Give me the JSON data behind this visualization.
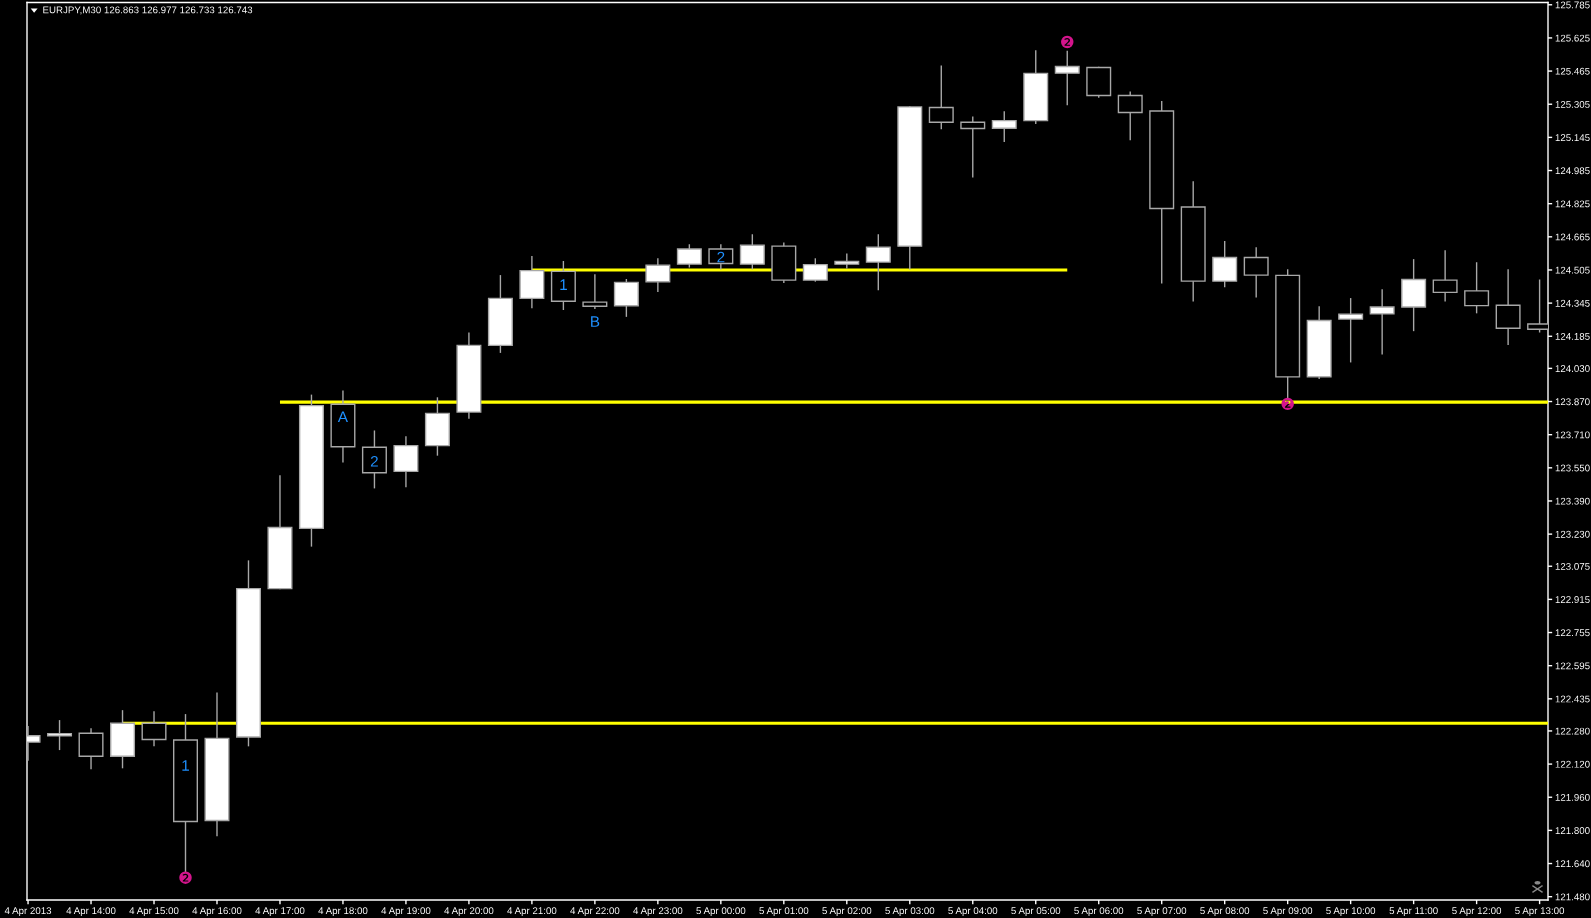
{
  "chart_data": {
    "type": "candlestick",
    "title": "EURJPY,M30 126.863 126.977 126.733 126.743",
    "x": [
      "2013-04-04T13:00",
      "2013-04-04T13:30",
      "2013-04-04T14:00",
      "2013-04-04T14:30",
      "2013-04-04T15:00",
      "2013-04-04T15:30",
      "2013-04-04T16:00",
      "2013-04-04T16:30",
      "2013-04-04T17:00",
      "2013-04-04T17:30",
      "2013-04-04T18:00",
      "2013-04-04T18:30",
      "2013-04-04T19:00",
      "2013-04-04T19:30",
      "2013-04-04T20:00",
      "2013-04-04T20:30",
      "2013-04-04T21:00",
      "2013-04-04T21:30",
      "2013-04-04T22:00",
      "2013-04-04T22:30",
      "2013-04-04T23:00",
      "2013-04-04T23:30",
      "2013-04-05T00:00",
      "2013-04-05T00:30",
      "2013-04-05T01:00",
      "2013-04-05T01:30",
      "2013-04-05T02:00",
      "2013-04-05T02:30",
      "2013-04-05T03:00",
      "2013-04-05T03:30",
      "2013-04-05T04:00",
      "2013-04-05T04:30",
      "2013-04-05T05:00",
      "2013-04-05T05:30",
      "2013-04-05T06:00",
      "2013-04-05T06:30",
      "2013-04-05T07:00",
      "2013-04-05T07:30",
      "2013-04-05T08:00",
      "2013-04-05T08:30",
      "2013-04-05T09:00",
      "2013-04-05T09:30",
      "2013-04-05T10:00",
      "2013-04-05T10:30",
      "2013-04-05T11:00",
      "2013-04-05T11:30",
      "2013-04-05T12:00",
      "2013-04-05T12:30",
      "2013-04-05T13:00"
    ],
    "ohlc": [
      [
        122.226,
        122.3,
        122.14,
        122.257
      ],
      [
        122.256,
        122.329,
        122.191,
        122.267
      ],
      [
        122.269,
        122.29,
        122.099,
        122.158
      ],
      [
        122.158,
        122.377,
        122.103,
        122.317
      ],
      [
        122.317,
        122.372,
        122.209,
        122.239
      ],
      [
        122.236,
        122.358,
        121.6,
        121.843
      ],
      [
        121.848,
        122.462,
        121.775,
        122.244
      ],
      [
        122.251,
        123.1,
        122.209,
        122.967
      ],
      [
        122.967,
        123.511,
        122.967,
        123.262
      ],
      [
        123.258,
        123.9,
        123.173,
        123.85
      ],
      [
        123.857,
        123.92,
        123.579,
        123.652
      ],
      [
        123.649,
        123.727,
        123.454,
        123.526
      ],
      [
        123.533,
        123.699,
        123.46,
        123.657
      ],
      [
        123.657,
        123.887,
        123.612,
        123.813
      ],
      [
        123.819,
        124.2,
        123.79,
        124.141
      ],
      [
        124.141,
        124.477,
        124.108,
        124.368
      ],
      [
        124.368,
        124.569,
        124.323,
        124.502
      ],
      [
        124.498,
        124.545,
        124.315,
        124.354
      ],
      [
        124.35,
        124.481,
        124.32,
        124.33
      ],
      [
        124.332,
        124.458,
        124.282,
        124.445
      ],
      [
        124.448,
        124.558,
        124.402,
        124.528
      ],
      [
        124.533,
        124.626,
        124.52,
        124.606
      ],
      [
        124.606,
        124.626,
        124.511,
        124.536
      ],
      [
        124.533,
        124.674,
        124.511,
        124.624
      ],
      [
        124.62,
        124.634,
        124.445,
        124.456
      ],
      [
        124.456,
        124.558,
        124.452,
        124.531
      ],
      [
        124.533,
        124.581,
        124.516,
        124.546
      ],
      [
        124.543,
        124.674,
        124.411,
        124.615
      ],
      [
        124.62,
        125.292,
        124.511,
        125.292
      ],
      [
        125.289,
        125.489,
        125.188,
        125.218
      ],
      [
        125.218,
        125.243,
        124.955,
        125.188
      ],
      [
        125.189,
        125.268,
        125.126,
        125.226
      ],
      [
        125.226,
        125.562,
        125.213,
        125.454
      ],
      [
        125.455,
        125.56,
        125.304,
        125.487
      ],
      [
        125.482,
        125.482,
        125.34,
        125.347
      ],
      [
        125.347,
        125.363,
        125.134,
        125.265
      ],
      [
        125.272,
        125.317,
        124.443,
        124.802
      ],
      [
        124.809,
        124.93,
        124.356,
        124.451
      ],
      [
        124.451,
        124.641,
        124.425,
        124.565
      ],
      [
        124.565,
        124.611,
        124.376,
        124.48
      ],
      [
        124.479,
        124.505,
        123.887,
        123.989
      ],
      [
        123.989,
        124.327,
        123.982,
        124.261
      ],
      [
        124.268,
        124.366,
        124.062,
        124.291
      ],
      [
        124.293,
        124.409,
        124.1,
        124.326
      ],
      [
        124.326,
        124.554,
        124.213,
        124.459
      ],
      [
        124.456,
        124.597,
        124.356,
        124.397
      ],
      [
        124.404,
        124.539,
        124.299,
        124.333
      ],
      [
        124.335,
        124.505,
        124.146,
        124.224
      ],
      [
        124.244,
        124.456,
        124.206,
        124.219
      ]
    ],
    "series": [
      {
        "type": "line",
        "x": [
          "2013-04-04T21:00",
          "2013-04-05T05:30"
        ],
        "values": [
          124.505,
          124.505
        ],
        "color": "#ffff00"
      },
      {
        "type": "line",
        "x": [
          "2013-04-04T17:00",
          "2013-04-05T13:08"
        ],
        "values": [
          123.867,
          123.867
        ],
        "color": "#ffff00"
      },
      {
        "type": "line",
        "x": [
          "2013-04-04T14:30",
          "2013-04-05T13:08"
        ],
        "values": [
          122.317,
          122.317
        ],
        "color": "#ffff00"
      }
    ],
    "annotations": [
      "1",
      "A",
      "2",
      "1",
      "B",
      "2",
      {
        "text": "❷",
        "x": "2013-04-04T15:30",
        "y": 121.6
      },
      {
        "text": "❷",
        "x": "2013-04-05T05:30",
        "y": 125.56
      },
      {
        "text": "❷",
        "x": "2013-04-05T09:00",
        "y": 123.887
      }
    ],
    "xlim": [
      "2013-04-04T12:59",
      "2013-04-05T13:08"
    ],
    "xticks": [
      {
        "value": "2013-04-04T13:00",
        "label": "4 Apr 2013"
      },
      {
        "value": "2013-04-04T14:00",
        "label": "4 Apr 14:00"
      },
      {
        "value": "2013-04-04T15:00",
        "label": "4 Apr 15:00"
      },
      {
        "value": "2013-04-04T16:00",
        "label": "4 Apr 16:00"
      },
      {
        "value": "2013-04-04T17:00",
        "label": "4 Apr 17:00"
      },
      {
        "value": "2013-04-04T18:00",
        "label": "4 Apr 18:00"
      },
      {
        "value": "2013-04-04T19:00",
        "label": "4 Apr 19:00"
      },
      {
        "value": "2013-04-04T20:00",
        "label": "4 Apr 20:00"
      },
      {
        "value": "2013-04-04T21:00",
        "label": "4 Apr 21:00"
      },
      {
        "value": "2013-04-04T22:00",
        "label": "4 Apr 22:00"
      },
      {
        "value": "2013-04-04T23:00",
        "label": "4 Apr 23:00"
      },
      {
        "value": "2013-04-05T00:00",
        "label": "5 Apr 00:00"
      },
      {
        "value": "2013-04-05T01:00",
        "label": "5 Apr 01:00"
      },
      {
        "value": "2013-04-05T02:00",
        "label": "5 Apr 02:00"
      },
      {
        "value": "2013-04-05T03:00",
        "label": "5 Apr 03:00"
      },
      {
        "value": "2013-04-05T04:00",
        "label": "5 Apr 04:00"
      },
      {
        "value": "2013-04-05T05:00",
        "label": "5 Apr 05:00"
      },
      {
        "value": "2013-04-05T06:00",
        "label": "5 Apr 06:00"
      },
      {
        "value": "2013-04-05T07:00",
        "label": "5 Apr 07:00"
      },
      {
        "value": "2013-04-05T08:00",
        "label": "5 Apr 08:00"
      },
      {
        "value": "2013-04-05T09:00",
        "label": "5 Apr 09:00"
      },
      {
        "value": "2013-04-05T10:00",
        "label": "5 Apr 10:00"
      },
      {
        "value": "2013-04-05T11:00",
        "label": "5 Apr 11:00"
      },
      {
        "value": "2013-04-05T12:00",
        "label": "5 Apr 12:00"
      },
      {
        "value": "2013-04-05T13:00",
        "label": "5 Apr 13:00"
      }
    ],
    "ylim": [
      121.464,
      125.796
    ],
    "yticks": [
      125.785,
      125.625,
      125.465,
      125.305,
      125.145,
      124.985,
      124.825,
      124.665,
      124.505,
      124.345,
      124.185,
      {
        "value": 124.03,
        "label": "124.030"
      },
      {
        "value": 123.87,
        "label": "123.870"
      },
      {
        "value": 123.71,
        "label": "123.710"
      },
      {
        "value": 123.55,
        "label": "123.550"
      },
      {
        "value": 123.39,
        "label": "123.390"
      },
      {
        "value": 123.23,
        "label": "123.230"
      },
      123.075,
      122.915,
      122.755,
      122.595,
      122.435,
      {
        "value": 122.28,
        "label": "122.280"
      },
      {
        "value": 122.12,
        "label": "122.120"
      },
      {
        "value": 121.96,
        "label": "121.960"
      },
      {
        "value": 121.8,
        "label": "121.800"
      },
      {
        "value": 121.64,
        "label": "121.640"
      },
      {
        "value": 121.48,
        "label": "121.480"
      }
    ]
  }
}
